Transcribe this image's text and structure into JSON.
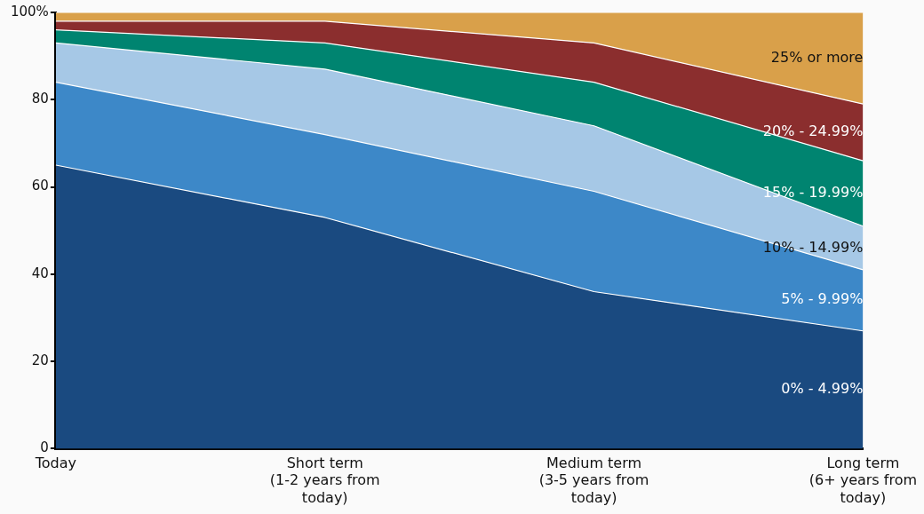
{
  "chart_data": {
    "type": "area",
    "stacked": true,
    "categories": [
      "Today",
      "Short term\n(1-2 years from\ntoday)",
      "Medium term\n(3-5 years from\ntoday)",
      "Long term\n(6+ years from\ntoday)"
    ],
    "series": [
      {
        "name": "0% - 4.99%",
        "color": "#1a4a80",
        "values": [
          65,
          53,
          36,
          27
        ]
      },
      {
        "name": "5% - 9.99%",
        "color": "#3d88c8",
        "values": [
          19,
          19,
          23,
          14
        ]
      },
      {
        "name": "10% - 14.99%",
        "color": "#a6c8e6",
        "values": [
          9,
          15,
          15,
          10
        ]
      },
      {
        "name": "15% - 19.99%",
        "color": "#008470",
        "values": [
          3,
          6,
          10,
          15
        ]
      },
      {
        "name": "20% - 24.99%",
        "color": "#8b2e2e",
        "values": [
          2,
          5,
          9,
          13
        ]
      },
      {
        "name": "25% or more",
        "color": "#d9a04a",
        "values": [
          2,
          2,
          7,
          21
        ]
      }
    ],
    "ylim": [
      0,
      100
    ],
    "yticks": [
      0,
      20,
      40,
      60,
      80,
      {
        "value": 100,
        "label": "100%"
      }
    ],
    "grid": false,
    "legend": false
  }
}
